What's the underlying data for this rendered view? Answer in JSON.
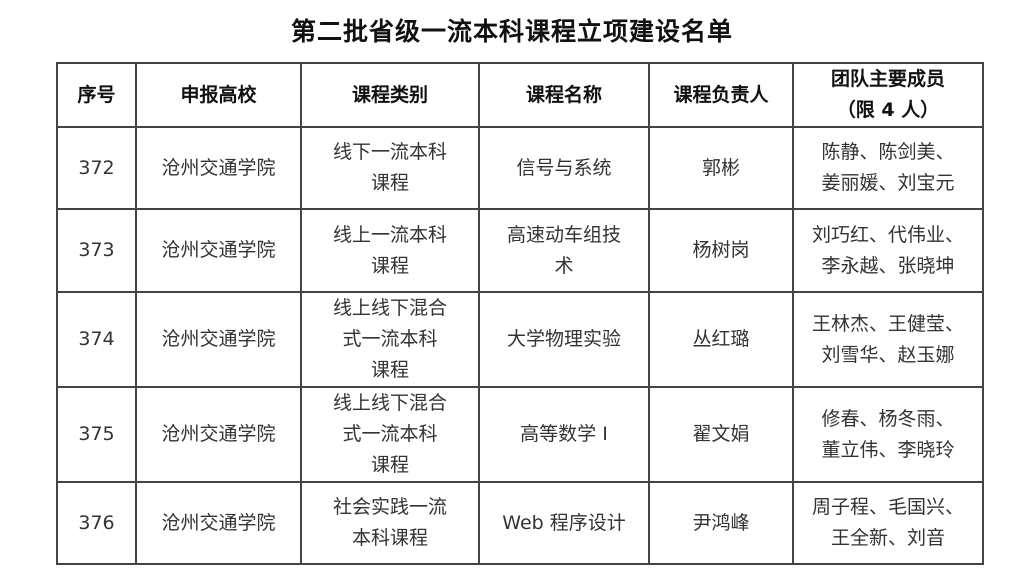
{
  "title": "第二批省级一流本科课程立项建设名单",
  "headers": [
    "序号",
    "申报高校",
    "课程类别",
    "课程名称",
    "课程负责人",
    [
      "团队主要成员",
      "（限 4 人）"
    ]
  ],
  "rows": [
    {
      "no": "372",
      "school": "沧州交通学院",
      "category": [
        "线下一流本科",
        "课程"
      ],
      "course": [
        "信号与系统"
      ],
      "leader": "郭彬",
      "members": [
        "陈静、陈剑美、",
        "姜丽媛、刘宝元"
      ]
    },
    {
      "no": "373",
      "school": "沧州交通学院",
      "category": [
        "线上一流本科",
        "课程"
      ],
      "course": [
        "高速动车组技",
        "术"
      ],
      "leader": "杨树岗",
      "members": [
        "刘巧红、代伟业、",
        "李永越、张晓坤"
      ]
    },
    {
      "no": "374",
      "school": "沧州交通学院",
      "category": [
        "线上线下混合",
        "式一流本科",
        "课程"
      ],
      "course": [
        "大学物理实验"
      ],
      "leader": "丛红璐",
      "members": [
        "王林杰、王健莹、",
        "刘雪华、赵玉娜"
      ]
    },
    {
      "no": "375",
      "school": "沧州交通学院",
      "category": [
        "线上线下混合",
        "式一流本科",
        "课程"
      ],
      "course": [
        "高等数学 I"
      ],
      "leader": "翟文娟",
      "members": [
        "修春、杨冬雨、",
        "董立伟、李晓玲"
      ]
    },
    {
      "no": "376",
      "school": "沧州交通学院",
      "category": [
        "社会实践一流",
        "本科课程"
      ],
      "course": [
        "Web 程序设计"
      ],
      "leader": "尹鸿峰",
      "members": [
        "周子程、毛国兴、",
        "王全新、刘音"
      ]
    }
  ]
}
